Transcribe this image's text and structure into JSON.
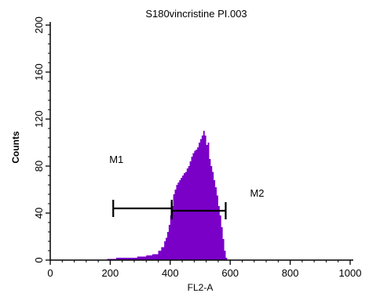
{
  "chart_data": {
    "type": "area",
    "title": "S180vincristine PI.003",
    "xlabel": "FL2-A",
    "ylabel": "Counts",
    "xlim": [
      0,
      1000
    ],
    "ylim": [
      0,
      200
    ],
    "x_ticks": [
      0,
      200,
      400,
      600,
      800,
      1000
    ],
    "y_ticks": [
      0,
      40,
      80,
      120,
      160,
      200
    ],
    "x_tick_labels": [
      "0",
      "200",
      "400",
      "600",
      "800",
      "1000"
    ],
    "y_tick_labels": [
      "0",
      "40",
      "80",
      "120",
      "160",
      "200"
    ],
    "grid": false,
    "histogram": {
      "fill": "#7a00c8",
      "x": [
        190,
        220,
        260,
        290,
        300,
        320,
        340,
        360,
        370,
        380,
        385,
        390,
        395,
        400,
        405,
        410,
        415,
        420,
        425,
        430,
        435,
        440,
        445,
        450,
        455,
        460,
        465,
        470,
        475,
        480,
        485,
        490,
        495,
        500,
        505,
        510,
        515,
        520,
        525,
        530,
        535,
        540,
        545,
        550,
        555,
        560,
        565,
        570,
        575,
        580,
        585,
        590
      ],
      "y": [
        1,
        2,
        2,
        3,
        3,
        4,
        5,
        8,
        11,
        16,
        19,
        24,
        30,
        38,
        46,
        56,
        60,
        64,
        66,
        68,
        70,
        72,
        74,
        75,
        78,
        80,
        84,
        88,
        91,
        93,
        94,
        96,
        100,
        103,
        106,
        110,
        106,
        98,
        100,
        86,
        80,
        75,
        68,
        62,
        55,
        46,
        38,
        28,
        18,
        8,
        2,
        0
      ]
    },
    "gates": [
      {
        "name": "M1",
        "x_range": [
          210,
          405
        ],
        "y": 44
      },
      {
        "name": "M2",
        "x_range": [
          405,
          585
        ],
        "y": 42
      }
    ]
  }
}
